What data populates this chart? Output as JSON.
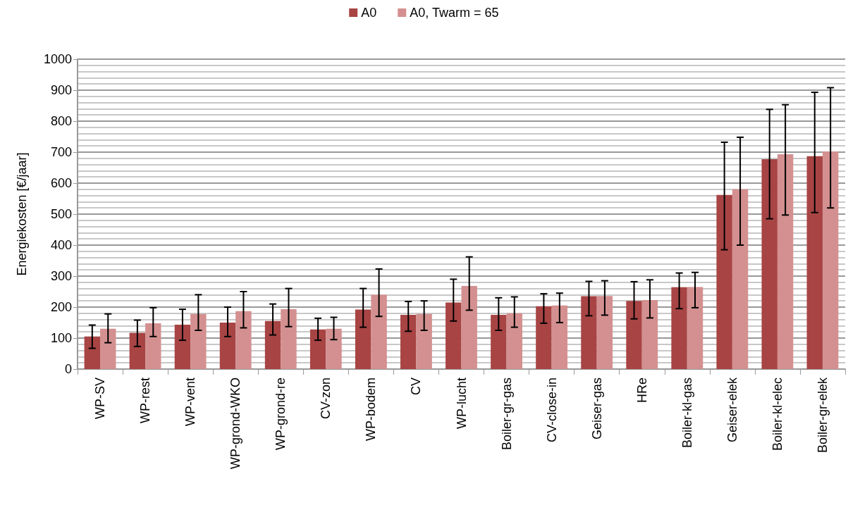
{
  "chart_data": {
    "type": "bar",
    "ylabel": "Energiekosten [€/jaar]",
    "categories": [
      "WP-SV",
      "WP-rest",
      "WP-vent",
      "WP-grond-WKO",
      "WP-grond-re",
      "CV-zon",
      "WP-bodem",
      "CV",
      "WP-lucht",
      "Boiler-gr-gas",
      "CV-close-in",
      "Geiser-gas",
      "HRe",
      "Boiler-kl-gas",
      "Geiser-elek",
      "Boiler-kl-elec",
      "Boiler-gr-elek"
    ],
    "series": [
      {
        "name": "A0",
        "color": "#a84444",
        "values": [
          105,
          117,
          143,
          150,
          155,
          128,
          192,
          175,
          215,
          175,
          203,
          235,
          220,
          264,
          562,
          677,
          687
        ],
        "errors": [
          [
            67,
            142
          ],
          [
            73,
            158
          ],
          [
            93,
            193
          ],
          [
            105,
            200
          ],
          [
            110,
            210
          ],
          [
            93,
            164
          ],
          [
            135,
            260
          ],
          [
            122,
            218
          ],
          [
            155,
            290
          ],
          [
            125,
            230
          ],
          [
            148,
            243
          ],
          [
            172,
            283
          ],
          [
            162,
            282
          ],
          [
            195,
            310
          ],
          [
            385,
            732
          ],
          [
            485,
            838
          ],
          [
            505,
            893
          ]
        ]
      },
      {
        "name": "A0, Twarm = 65",
        "color": "#d49090",
        "values": [
          130,
          148,
          178,
          187,
          193,
          130,
          240,
          178,
          268,
          180,
          205,
          236,
          223,
          265,
          580,
          693,
          702
        ],
        "errors": [
          [
            85,
            178
          ],
          [
            105,
            198
          ],
          [
            125,
            240
          ],
          [
            133,
            250
          ],
          [
            137,
            260
          ],
          [
            95,
            167
          ],
          [
            170,
            323
          ],
          [
            125,
            220
          ],
          [
            190,
            362
          ],
          [
            135,
            233
          ],
          [
            150,
            245
          ],
          [
            174,
            285
          ],
          [
            165,
            288
          ],
          [
            198,
            312
          ],
          [
            400,
            748
          ],
          [
            497,
            853
          ],
          [
            520,
            908
          ]
        ]
      }
    ],
    "ylim": [
      0,
      1000
    ],
    "yticks": [
      0,
      100,
      200,
      300,
      400,
      500,
      600,
      700,
      800,
      900,
      1000
    ],
    "grid": true,
    "legend": "top"
  }
}
